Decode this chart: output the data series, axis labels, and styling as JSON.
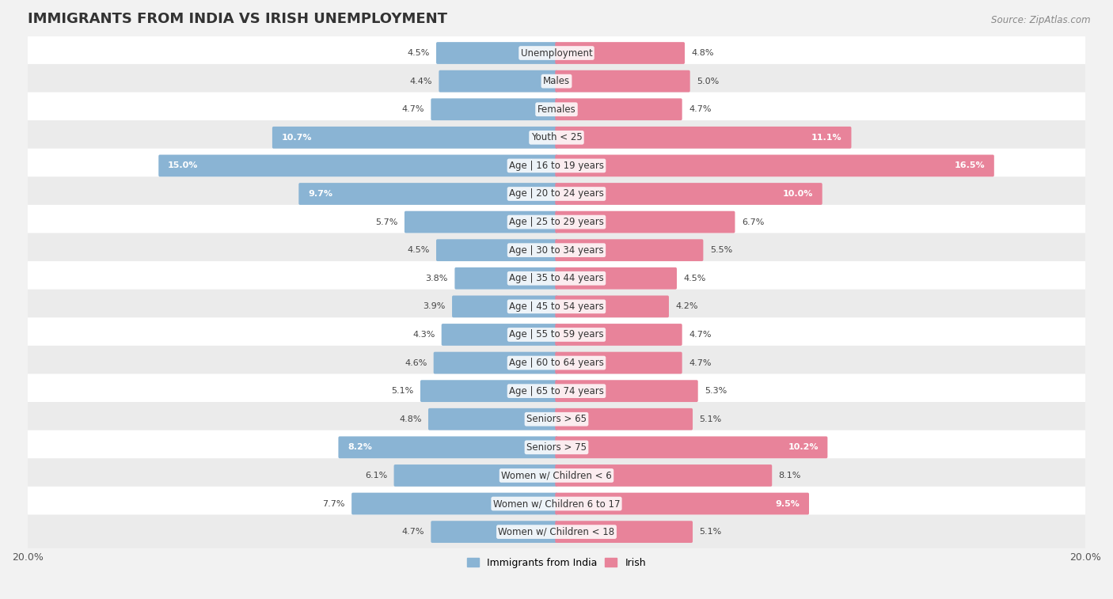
{
  "title": "IMMIGRANTS FROM INDIA VS IRISH UNEMPLOYMENT",
  "source": "Source: ZipAtlas.com",
  "categories": [
    "Unemployment",
    "Males",
    "Females",
    "Youth < 25",
    "Age | 16 to 19 years",
    "Age | 20 to 24 years",
    "Age | 25 to 29 years",
    "Age | 30 to 34 years",
    "Age | 35 to 44 years",
    "Age | 45 to 54 years",
    "Age | 55 to 59 years",
    "Age | 60 to 64 years",
    "Age | 65 to 74 years",
    "Seniors > 65",
    "Seniors > 75",
    "Women w/ Children < 6",
    "Women w/ Children 6 to 17",
    "Women w/ Children < 18"
  ],
  "india_values": [
    4.5,
    4.4,
    4.7,
    10.7,
    15.0,
    9.7,
    5.7,
    4.5,
    3.8,
    3.9,
    4.3,
    4.6,
    5.1,
    4.8,
    8.2,
    6.1,
    7.7,
    4.7
  ],
  "irish_values": [
    4.8,
    5.0,
    4.7,
    11.1,
    16.5,
    10.0,
    6.7,
    5.5,
    4.5,
    4.2,
    4.7,
    4.7,
    5.3,
    5.1,
    10.2,
    8.1,
    9.5,
    5.1
  ],
  "india_color": "#8ab4d4",
  "irish_color": "#e8839a",
  "row_color_light": "#f5f5f5",
  "row_color_dark": "#ebebeb",
  "background_color": "#f2f2f2",
  "max_value": 20.0,
  "legend_india": "Immigrants from India",
  "legend_irish": "Irish",
  "title_fontsize": 13,
  "label_fontsize": 8.5,
  "value_fontsize": 8.0,
  "source_fontsize": 8.5
}
